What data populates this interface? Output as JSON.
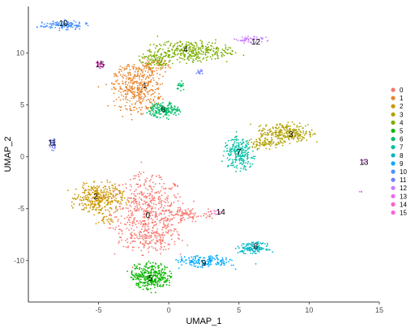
{
  "chart_data": {
    "type": "scatter",
    "title": "",
    "xlabel": "UMAP_1",
    "ylabel": "UMAP_2",
    "xlim": [
      -10,
      15
    ],
    "ylim": [
      -14,
      14.5
    ],
    "x_ticks": [
      -5,
      0,
      5,
      10,
      15
    ],
    "y_ticks": [
      -10,
      -5,
      0,
      5,
      10
    ],
    "grid": false,
    "legend_position": "right",
    "series": [
      {
        "name": "0",
        "color": "#F8766D",
        "label_pos": [
          -1.5,
          -5.6
        ],
        "blobs": [
          {
            "cx": -1.5,
            "cy": -5.5,
            "rx": 2.6,
            "ry": 3.8,
            "n": 560
          },
          {
            "cx": 1.2,
            "cy": -5.6,
            "rx": 2.0,
            "ry": 0.7,
            "n": 90
          },
          {
            "cx": -0.8,
            "cy": -7.6,
            "rx": 1.6,
            "ry": 1.2,
            "n": 80
          }
        ]
      },
      {
        "name": "1",
        "color": "#E8852C",
        "label_pos": [
          -1.7,
          6.9
        ],
        "blobs": [
          {
            "cx": -2.3,
            "cy": 6.6,
            "rx": 1.8,
            "ry": 2.4,
            "n": 400
          },
          {
            "cx": -1.2,
            "cy": 8.7,
            "rx": 1.2,
            "ry": 0.9,
            "n": 70
          }
        ]
      },
      {
        "name": "2",
        "color": "#CC9600",
        "label_pos": [
          -5.2,
          -3.8
        ],
        "blobs": [
          {
            "cx": -5.0,
            "cy": -4.0,
            "rx": 1.8,
            "ry": 1.5,
            "n": 330
          },
          {
            "cx": -4.6,
            "cy": -6.2,
            "rx": 0.6,
            "ry": 0.5,
            "n": 20
          }
        ]
      },
      {
        "name": "3",
        "color": "#B0A000",
        "label_pos": [
          8.7,
          2.2
        ],
        "blobs": [
          {
            "cx": 8.4,
            "cy": 2.3,
            "rx": 1.9,
            "ry": 1.0,
            "n": 260
          },
          {
            "cx": 6.8,
            "cy": 1.3,
            "rx": 1.2,
            "ry": 0.6,
            "n": 70
          }
        ]
      },
      {
        "name": "4",
        "color": "#7CAE00",
        "label_pos": [
          1.2,
          10.4
        ],
        "blobs": [
          {
            "cx": 1.5,
            "cy": 10.2,
            "rx": 2.9,
            "ry": 1.0,
            "n": 330
          },
          {
            "cx": -1.0,
            "cy": 9.4,
            "rx": 1.2,
            "ry": 0.9,
            "n": 90
          }
        ]
      },
      {
        "name": "5",
        "color": "#0CB702",
        "label_pos": [
          -1.3,
          -11.7
        ],
        "blobs": [
          {
            "cx": -1.3,
            "cy": -11.5,
            "rx": 1.4,
            "ry": 1.3,
            "n": 330
          }
        ]
      },
      {
        "name": "6",
        "color": "#00BE67",
        "label_pos": [
          -0.4,
          4.6
        ],
        "blobs": [
          {
            "cx": -0.3,
            "cy": 4.5,
            "rx": 1.1,
            "ry": 0.7,
            "n": 170
          },
          {
            "cx": 0.9,
            "cy": 6.8,
            "rx": 0.3,
            "ry": 0.5,
            "n": 20
          }
        ]
      },
      {
        "name": "7",
        "color": "#00BFA4",
        "label_pos": [
          5.0,
          0.5
        ],
        "blobs": [
          {
            "cx": 5.0,
            "cy": 0.3,
            "rx": 1.1,
            "ry": 1.6,
            "n": 220
          }
        ]
      },
      {
        "name": "8",
        "color": "#00B8C4",
        "label_pos": [
          6.2,
          -8.6
        ],
        "blobs": [
          {
            "cx": 6.0,
            "cy": -8.8,
            "rx": 1.1,
            "ry": 0.55,
            "n": 130
          }
        ]
      },
      {
        "name": "9",
        "color": "#00A9FF",
        "label_pos": [
          2.5,
          -10.2
        ],
        "blobs": [
          {
            "cx": 2.6,
            "cy": -10.1,
            "rx": 2.1,
            "ry": 0.6,
            "n": 160
          }
        ]
      },
      {
        "name": "10",
        "color": "#4792FF",
        "label_pos": [
          -7.5,
          12.9
        ],
        "blobs": [
          {
            "cx": -7.5,
            "cy": 12.7,
            "rx": 1.7,
            "ry": 0.45,
            "n": 130
          }
        ]
      },
      {
        "name": "11",
        "color": "#6E7FFF",
        "label_pos": [
          -8.3,
          1.4
        ],
        "blobs": [
          {
            "cx": -8.3,
            "cy": 1.2,
            "rx": 0.22,
            "ry": 0.7,
            "n": 40
          },
          {
            "cx": 2.2,
            "cy": 8.2,
            "rx": 0.3,
            "ry": 0.2,
            "n": 12
          }
        ]
      },
      {
        "name": "12",
        "color": "#C77CFF",
        "label_pos": [
          6.2,
          11.1
        ],
        "blobs": [
          {
            "cx": 5.9,
            "cy": 11.3,
            "rx": 1.2,
            "ry": 0.35,
            "n": 50
          }
        ]
      },
      {
        "name": "13",
        "color": "#E76BF3",
        "label_pos": [
          13.9,
          -0.5
        ],
        "blobs": [
          {
            "cx": 13.9,
            "cy": -0.5,
            "rx": 0.15,
            "ry": 0.25,
            "n": 8
          },
          {
            "cx": 13.7,
            "cy": -3.4,
            "rx": 0.12,
            "ry": 0.12,
            "n": 4
          }
        ]
      },
      {
        "name": "14",
        "color": "#FF61C3",
        "label_pos": [
          3.7,
          -5.3
        ],
        "blobs": [
          {
            "cx": 3.4,
            "cy": -5.4,
            "rx": 0.45,
            "ry": 0.25,
            "n": 12
          }
        ]
      },
      {
        "name": "15",
        "color": "#FA62DB",
        "label_pos": [
          -4.9,
          8.9
        ],
        "blobs": [
          {
            "cx": -4.9,
            "cy": 8.9,
            "rx": 0.3,
            "ry": 0.4,
            "n": 30
          }
        ]
      }
    ]
  }
}
